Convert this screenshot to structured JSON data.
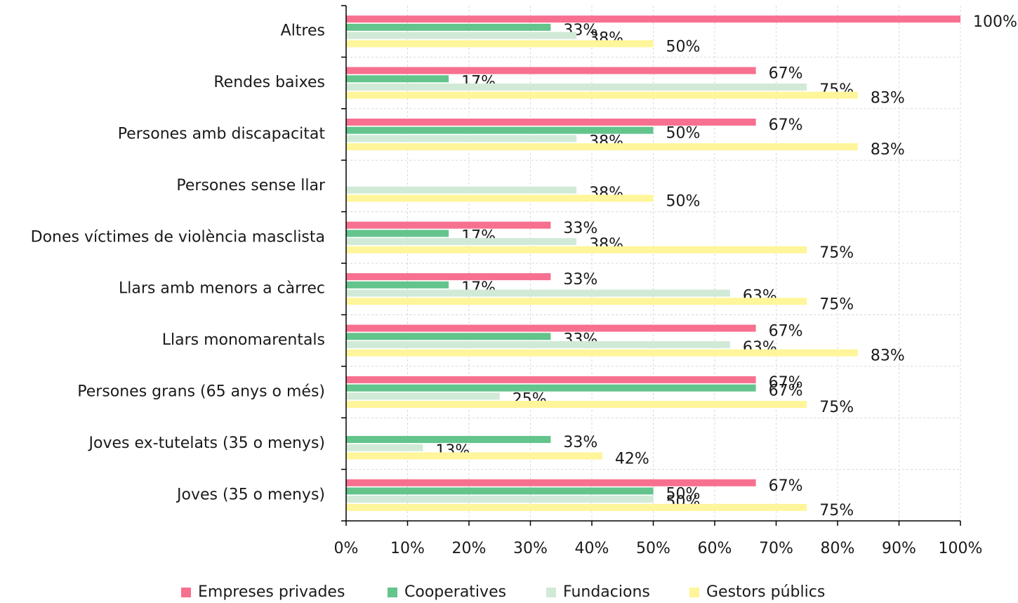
{
  "chart_data": {
    "type": "hbar",
    "categories": [
      "Altres",
      "Rendes baixes",
      "Persones amb discapacitat",
      "Persones sense llar",
      "Dones víctimes de violència masclista",
      "Llars amb menors a càrrec",
      "Llars monomarentals",
      "Persones grans (65 anys o més)",
      "Joves ex-tutelats (35 o menys)",
      "Joves (35 o menys)"
    ],
    "series": [
      {
        "name": "Empreses privades",
        "color": "#f7708f",
        "values": [
          100,
          66.7,
          66.7,
          null,
          33.3,
          33.3,
          66.7,
          66.7,
          null,
          66.7
        ],
        "value_labels": [
          "100%",
          "67%",
          "67%",
          null,
          "33%",
          "33%",
          "67%",
          "67%",
          null,
          "67%"
        ]
      },
      {
        "name": "Cooperatives",
        "color": "#63c48c",
        "values": [
          33.3,
          16.7,
          50,
          null,
          16.7,
          16.7,
          33.3,
          66.7,
          33.3,
          50
        ],
        "value_labels": [
          "33%",
          "17%",
          "50%",
          null,
          "17%",
          "17%",
          "33%",
          "67%",
          "33%",
          "50%"
        ]
      },
      {
        "name": "Fundacions",
        "color": "#d1ead7",
        "values": [
          37.5,
          75,
          37.5,
          37.5,
          37.5,
          62.5,
          62.5,
          25,
          12.5,
          50
        ],
        "value_labels": [
          "38%",
          "75%",
          "38%",
          "38%",
          "38%",
          "63%",
          "63%",
          "25%",
          "13%",
          "50%"
        ]
      },
      {
        "name": "Gestors públics",
        "color": "#fff59a",
        "values": [
          50,
          83.3,
          83.3,
          50,
          75,
          75,
          83.3,
          75,
          41.7,
          75
        ],
        "value_labels": [
          "50%",
          "83%",
          "83%",
          "50%",
          "75%",
          "75%",
          "83%",
          "75%",
          "42%",
          "75%"
        ]
      }
    ],
    "xlim": [
      0,
      100
    ],
    "xticks": [
      {
        "value": 0,
        "label": "0%"
      },
      {
        "value": 10,
        "label": "10%"
      },
      {
        "value": 20,
        "label": "20%"
      },
      {
        "value": 30,
        "label": "30%"
      },
      {
        "value": 40,
        "label": "40%"
      },
      {
        "value": 50,
        "label": "50%"
      },
      {
        "value": 60,
        "label": "60%"
      },
      {
        "value": 70,
        "label": "70%"
      },
      {
        "value": 80,
        "label": "80%"
      },
      {
        "value": 90,
        "label": "90%"
      },
      {
        "value": 100,
        "label": "100%"
      }
    ],
    "grid": true
  }
}
